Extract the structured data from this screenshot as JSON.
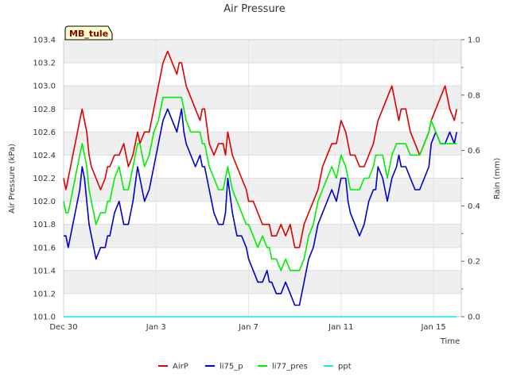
{
  "chart_data": {
    "type": "line",
    "title": "Air Pressure",
    "station_label": "MB_tule",
    "xlabel": "Time",
    "ylabel": "Air Pressure (kPa)",
    "y2label": "Rain (mm)",
    "ylim": [
      101.0,
      103.4
    ],
    "y2lim": [
      0.0,
      1.0
    ],
    "xlim": [
      0,
      17.2
    ],
    "x_ticks": [
      {
        "label": "Dec 30",
        "day": 0
      },
      {
        "label": "Jan 3",
        "day": 4
      },
      {
        "label": "Jan 7",
        "day": 8
      },
      {
        "label": "Jan 11",
        "day": 12
      },
      {
        "label": "Jan 15",
        "day": 16
      }
    ],
    "y_ticks": [
      "101.0",
      "101.2",
      "101.4",
      "101.6",
      "101.8",
      "102.0",
      "102.2",
      "102.4",
      "102.6",
      "102.8",
      "103.0",
      "103.2",
      "103.4"
    ],
    "y2_ticks": [
      "0.0",
      "0.2",
      "0.4",
      "0.6",
      "0.8",
      "1.0"
    ],
    "grid": true,
    "legend_position": "bottom",
    "series": [
      {
        "name": "AirP",
        "color": "#dd0000",
        "axis": "left",
        "x": [
          0.0,
          0.1,
          0.2,
          0.3,
          0.5,
          0.7,
          0.8,
          0.9,
          1.0,
          1.1,
          1.2,
          1.4,
          1.6,
          1.8,
          1.9,
          2.0,
          2.2,
          2.4,
          2.6,
          2.8,
          3.0,
          3.2,
          3.3,
          3.5,
          3.7,
          3.9,
          4.1,
          4.3,
          4.5,
          4.7,
          4.9,
          5.0,
          5.1,
          5.2,
          5.3,
          5.5,
          5.7,
          5.9,
          6.0,
          6.1,
          6.3,
          6.5,
          6.7,
          6.9,
          7.0,
          7.1,
          7.3,
          7.5,
          7.7,
          7.9,
          8.0,
          8.2,
          8.4,
          8.6,
          8.8,
          8.9,
          9.0,
          9.2,
          9.4,
          9.6,
          9.8,
          10.0,
          10.2,
          10.4,
          10.6,
          10.8,
          11.0,
          11.2,
          11.4,
          11.6,
          11.8,
          12.0,
          12.2,
          12.3,
          12.4,
          12.6,
          12.8,
          13.0,
          13.2,
          13.4,
          13.5,
          13.6,
          13.8,
          14.0,
          14.2,
          14.4,
          14.5,
          14.6,
          14.8,
          15.0,
          15.2,
          15.4,
          15.6,
          15.8,
          15.9,
          16.1,
          16.3,
          16.5,
          16.7,
          16.9,
          17.0
        ],
        "y": [
          102.2,
          102.1,
          102.2,
          102.3,
          102.5,
          102.7,
          102.8,
          102.7,
          102.6,
          102.4,
          102.3,
          102.2,
          102.1,
          102.2,
          102.3,
          102.3,
          102.4,
          102.4,
          102.5,
          102.3,
          102.4,
          102.6,
          102.5,
          102.6,
          102.6,
          102.8,
          103.0,
          103.2,
          103.3,
          103.2,
          103.1,
          103.2,
          103.2,
          103.1,
          103.0,
          102.9,
          102.8,
          102.7,
          102.8,
          102.8,
          102.5,
          102.4,
          102.5,
          102.5,
          102.4,
          102.6,
          102.4,
          102.3,
          102.2,
          102.1,
          102.0,
          102.0,
          101.9,
          101.8,
          101.8,
          101.8,
          101.7,
          101.7,
          101.8,
          101.7,
          101.8,
          101.6,
          101.6,
          101.8,
          101.9,
          102.0,
          102.1,
          102.3,
          102.4,
          102.5,
          102.5,
          102.7,
          102.6,
          102.5,
          102.4,
          102.4,
          102.3,
          102.3,
          102.4,
          102.5,
          102.6,
          102.7,
          102.8,
          102.9,
          103.0,
          102.8,
          102.7,
          102.8,
          102.8,
          102.6,
          102.5,
          102.4,
          102.5,
          102.6,
          102.7,
          102.8,
          102.9,
          103.0,
          102.8,
          102.7,
          102.8
        ]
      },
      {
        "name": "li75_p",
        "color": "#0000cc",
        "axis": "left",
        "x": [
          0.0,
          0.1,
          0.2,
          0.3,
          0.5,
          0.7,
          0.8,
          0.9,
          1.0,
          1.1,
          1.2,
          1.4,
          1.6,
          1.8,
          1.9,
          2.0,
          2.2,
          2.4,
          2.6,
          2.8,
          3.0,
          3.2,
          3.3,
          3.5,
          3.7,
          3.9,
          4.1,
          4.3,
          4.5,
          4.7,
          4.9,
          5.0,
          5.1,
          5.2,
          5.3,
          5.5,
          5.7,
          5.9,
          6.0,
          6.1,
          6.3,
          6.5,
          6.7,
          6.9,
          7.0,
          7.1,
          7.3,
          7.5,
          7.7,
          7.9,
          8.0,
          8.2,
          8.4,
          8.6,
          8.8,
          8.9,
          9.0,
          9.2,
          9.4,
          9.6,
          9.8,
          10.0,
          10.2,
          10.4,
          10.6,
          10.8,
          11.0,
          11.2,
          11.4,
          11.6,
          11.8,
          12.0,
          12.2,
          12.3,
          12.4,
          12.6,
          12.8,
          13.0,
          13.2,
          13.4,
          13.5,
          13.6,
          13.8,
          14.0,
          14.2,
          14.4,
          14.5,
          14.6,
          14.8,
          15.0,
          15.2,
          15.4,
          15.6,
          15.8,
          15.9,
          16.1,
          16.3,
          16.5,
          16.7,
          16.9,
          17.0
        ],
        "y": [
          101.7,
          101.7,
          101.6,
          101.7,
          101.9,
          102.1,
          102.3,
          102.2,
          102.0,
          101.8,
          101.7,
          101.5,
          101.6,
          101.6,
          101.7,
          101.7,
          101.9,
          102.0,
          101.8,
          101.8,
          102.0,
          102.3,
          102.2,
          102.0,
          102.1,
          102.3,
          102.5,
          102.7,
          102.8,
          102.7,
          102.6,
          102.7,
          102.8,
          102.6,
          102.5,
          102.4,
          102.3,
          102.4,
          102.3,
          102.3,
          102.1,
          101.9,
          101.8,
          101.8,
          101.9,
          102.2,
          101.9,
          101.7,
          101.7,
          101.6,
          101.5,
          101.4,
          101.3,
          101.3,
          101.4,
          101.3,
          101.3,
          101.2,
          101.2,
          101.3,
          101.2,
          101.1,
          101.1,
          101.3,
          101.5,
          101.6,
          101.8,
          101.9,
          102.0,
          102.1,
          102.0,
          102.2,
          102.2,
          102.0,
          101.9,
          101.8,
          101.7,
          101.8,
          102.0,
          102.1,
          102.1,
          102.3,
          102.2,
          102.0,
          102.2,
          102.3,
          102.4,
          102.3,
          102.3,
          102.2,
          102.1,
          102.1,
          102.2,
          102.3,
          102.5,
          102.6,
          102.5,
          102.5,
          102.6,
          102.5,
          102.6
        ]
      },
      {
        "name": "li77_pres",
        "color": "#00ee00",
        "axis": "left",
        "x": [
          0.0,
          0.1,
          0.2,
          0.3,
          0.5,
          0.7,
          0.8,
          0.9,
          1.0,
          1.1,
          1.2,
          1.4,
          1.6,
          1.8,
          1.9,
          2.0,
          2.2,
          2.4,
          2.6,
          2.8,
          3.0,
          3.2,
          3.3,
          3.5,
          3.7,
          3.9,
          4.1,
          4.3,
          4.5,
          4.7,
          4.9,
          5.0,
          5.1,
          5.2,
          5.3,
          5.5,
          5.7,
          5.9,
          6.0,
          6.1,
          6.3,
          6.5,
          6.7,
          6.9,
          7.0,
          7.1,
          7.3,
          7.5,
          7.7,
          7.9,
          8.0,
          8.2,
          8.4,
          8.6,
          8.8,
          8.9,
          9.0,
          9.2,
          9.4,
          9.6,
          9.8,
          10.0,
          10.2,
          10.4,
          10.6,
          10.8,
          11.0,
          11.2,
          11.4,
          11.6,
          11.8,
          12.0,
          12.2,
          12.3,
          12.4,
          12.6,
          12.8,
          13.0,
          13.2,
          13.4,
          13.5,
          13.6,
          13.8,
          14.0,
          14.2,
          14.4,
          14.5,
          14.6,
          14.8,
          15.0,
          15.2,
          15.4,
          15.6,
          15.8,
          15.9,
          16.1,
          16.3,
          16.5,
          16.7,
          16.9,
          17.0
        ],
        "y": [
          102.0,
          101.9,
          101.9,
          102.0,
          102.2,
          102.4,
          102.5,
          102.4,
          102.3,
          102.1,
          102.0,
          101.8,
          101.9,
          101.9,
          102.0,
          102.0,
          102.2,
          102.3,
          102.1,
          102.1,
          102.3,
          102.5,
          102.5,
          102.3,
          102.4,
          102.6,
          102.7,
          102.9,
          102.9,
          102.9,
          102.9,
          102.9,
          102.9,
          102.8,
          102.7,
          102.6,
          102.6,
          102.6,
          102.5,
          102.5,
          102.3,
          102.2,
          102.1,
          102.1,
          102.2,
          102.3,
          102.1,
          102.0,
          101.9,
          101.8,
          101.8,
          101.7,
          101.6,
          101.7,
          101.6,
          101.6,
          101.5,
          101.5,
          101.4,
          101.5,
          101.4,
          101.4,
          101.4,
          101.5,
          101.7,
          101.8,
          102.0,
          102.1,
          102.2,
          102.3,
          102.2,
          102.4,
          102.3,
          102.2,
          102.1,
          102.1,
          102.1,
          102.2,
          102.2,
          102.3,
          102.4,
          102.4,
          102.4,
          102.2,
          102.4,
          102.5,
          102.5,
          102.5,
          102.5,
          102.4,
          102.4,
          102.4,
          102.5,
          102.6,
          102.7,
          102.6,
          102.5,
          102.5,
          102.5,
          102.5,
          102.5
        ]
      },
      {
        "name": "ppt",
        "color": "#00eeee",
        "axis": "right",
        "x": [
          0.0,
          17.0
        ],
        "y": [
          0.0,
          0.0
        ]
      }
    ]
  }
}
